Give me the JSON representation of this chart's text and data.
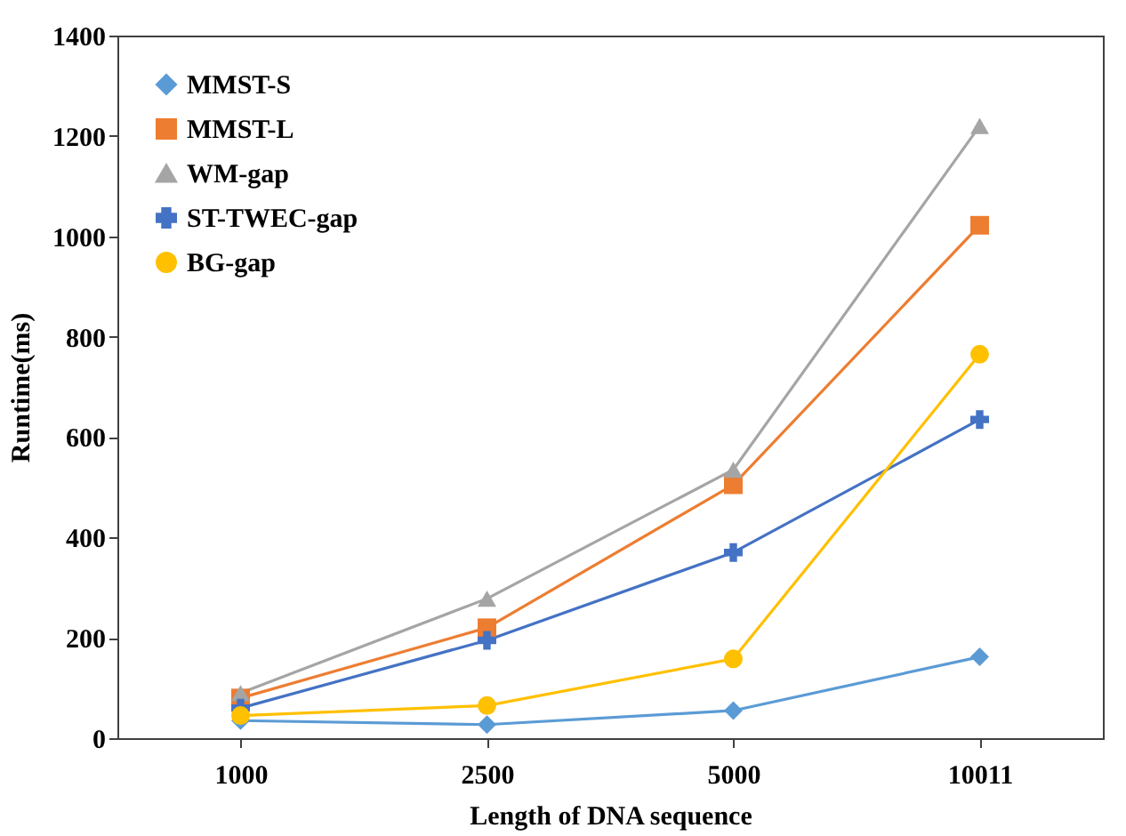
{
  "chart_data": {
    "type": "line",
    "xlabel": "Length of DNA sequence",
    "ylabel": "Runtime(ms)",
    "categories": [
      "1000",
      "2500",
      "5000",
      "10011"
    ],
    "ylim": [
      0,
      1400
    ],
    "yticks": [
      0,
      200,
      400,
      600,
      800,
      1000,
      1200,
      1400
    ],
    "grid": false,
    "legend": "top left",
    "series": [
      {
        "name": "MMST-S",
        "color": "#5b9bd5",
        "marker": "diamond",
        "values": [
          35,
          27,
          55,
          162
        ]
      },
      {
        "name": "MMST-L",
        "color": "#ed7d31",
        "marker": "square",
        "values": [
          80,
          220,
          505,
          1022
        ]
      },
      {
        "name": "WM-gap",
        "color": "#a5a5a5",
        "marker": "triangle",
        "values": [
          90,
          278,
          535,
          1220
        ]
      },
      {
        "name": "ST-TWEC-gap",
        "color": "#4472c4",
        "marker": "cross",
        "values": [
          60,
          195,
          370,
          635
        ]
      },
      {
        "name": "BG-gap",
        "color": "#ffc000",
        "marker": "circle",
        "values": [
          45,
          65,
          158,
          765
        ]
      }
    ]
  }
}
